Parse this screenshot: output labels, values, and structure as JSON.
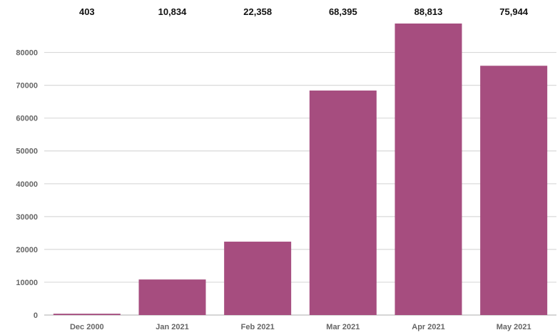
{
  "chart_data": {
    "type": "bar",
    "categories": [
      "Dec 2000",
      "Jan 2021",
      "Feb 2021",
      "Mar 2021",
      "Apr 2021",
      "May 2021"
    ],
    "values": [
      403,
      10834,
      22358,
      68395,
      88813,
      75944
    ],
    "data_labels": [
      "403",
      "10,834",
      "22,358",
      "68,395",
      "88,813",
      "75,944"
    ],
    "yticks": [
      0,
      10000,
      20000,
      30000,
      40000,
      50000,
      60000,
      70000,
      80000
    ],
    "ytick_labels": [
      "0",
      "10000",
      "20000",
      "30000",
      "40000",
      "50000",
      "60000",
      "70000",
      "80000"
    ],
    "ylim": [
      0,
      88813
    ],
    "grid": true,
    "legend": "none",
    "bar_color": "#a64d7f"
  }
}
